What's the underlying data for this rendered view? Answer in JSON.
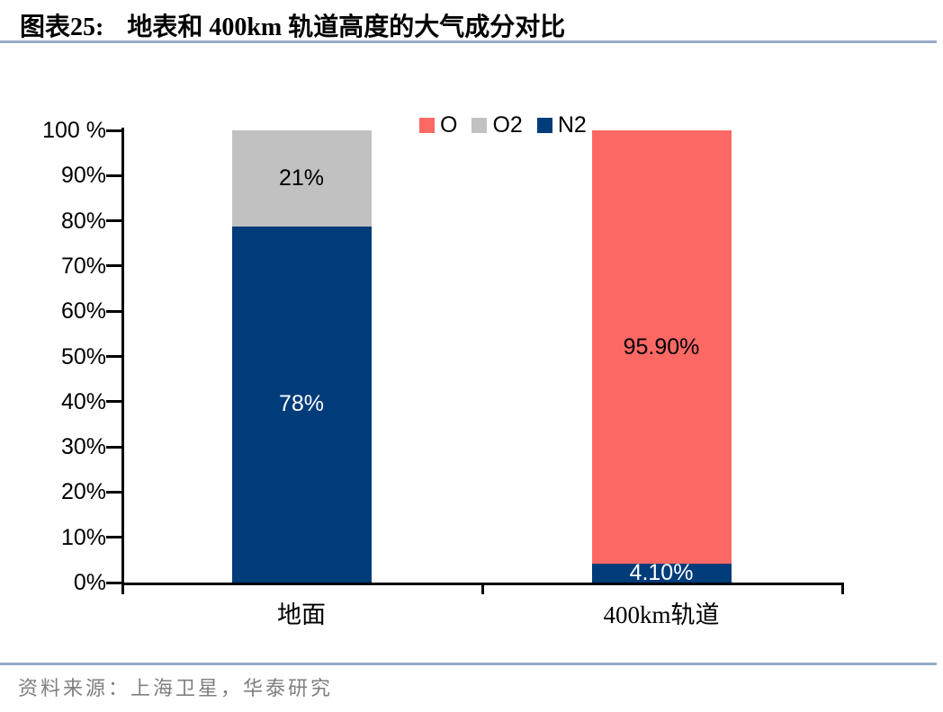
{
  "title": {
    "label": "图表25:",
    "text": "地表和 400km 轨道高度的大气成分对比"
  },
  "source": {
    "text": "资料来源：上海卫星，华泰研究"
  },
  "colors": {
    "O": "#FC6965",
    "O2": "#C1C1C1",
    "N2": "#003B7A",
    "rule": "#97ABC7",
    "axis": "#000000",
    "source_text": "#7F7F7F"
  },
  "chart_data": {
    "type": "bar",
    "stacked": true,
    "normalized_to_100": true,
    "title": "地表和 400km 轨道高度的大气成分对比",
    "xlabel": "",
    "ylabel": "",
    "ylim": [
      0,
      100
    ],
    "y_ticks": [
      "100 %",
      "90%",
      "80%",
      "70%",
      "60%",
      "50%",
      "40%",
      "30%",
      "20%",
      "10%",
      "0%"
    ],
    "grid": false,
    "legend_position": "top-center",
    "categories": [
      "地面",
      "400km轨道"
    ],
    "series": [
      {
        "name": "O",
        "color": "#FC6965",
        "values": [
          null,
          95.9
        ],
        "labels": [
          null,
          "95.90%"
        ],
        "label_colors": [
          null,
          "#000000"
        ]
      },
      {
        "name": "O2",
        "color": "#C1C1C1",
        "values": [
          21,
          null
        ],
        "labels": [
          "21%",
          null
        ],
        "label_colors": [
          "#000000",
          null
        ]
      },
      {
        "name": "N2",
        "color": "#003B7A",
        "values": [
          78,
          4.1
        ],
        "labels": [
          "78%",
          "4.10%"
        ],
        "label_colors": [
          "#FFFFFF",
          "#FFFFFF"
        ]
      }
    ]
  }
}
